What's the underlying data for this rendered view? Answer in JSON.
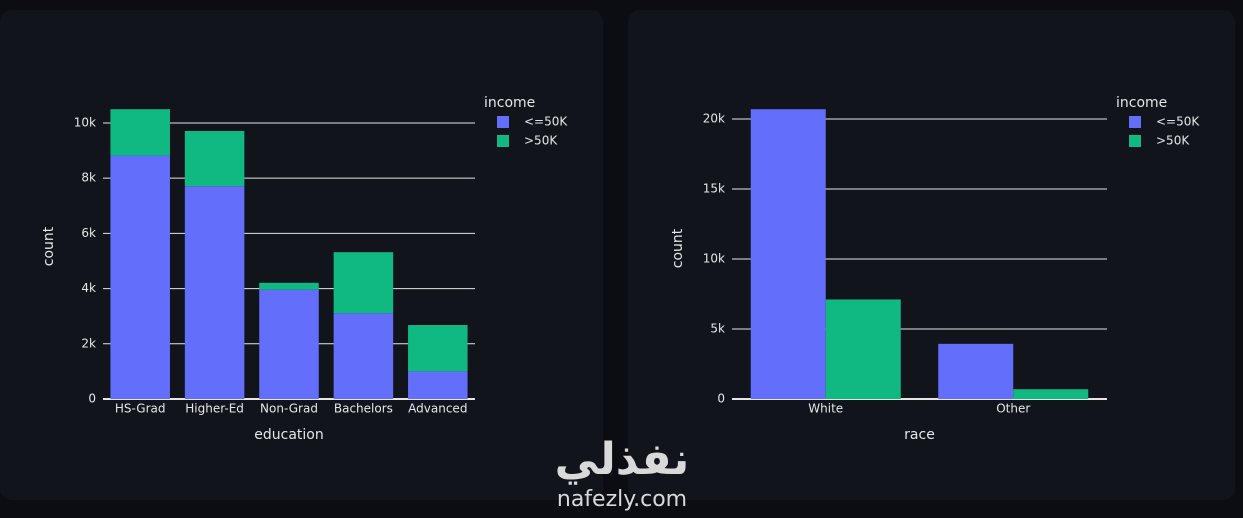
{
  "chart_data": [
    {
      "type": "bar",
      "barmode": "stack",
      "x_label": "education",
      "y_label": "count",
      "legend_title": "income",
      "categories": [
        "HS-Grad",
        "Higher-Ed",
        "Non-Grad",
        "Bachelors",
        "Advanced"
      ],
      "series": [
        {
          "name": "<=50K",
          "color": "#636efa",
          "values": [
            8820,
            7710,
            3960,
            3110,
            1000
          ]
        },
        {
          "name": ">50K",
          "color": "#10b981",
          "values": [
            1680,
            2000,
            250,
            2210,
            1680
          ]
        }
      ],
      "ylim": [
        0,
        11050
      ],
      "yticks": [
        0,
        {
          "value": 2000,
          "label": "2k"
        },
        {
          "value": 4000,
          "label": "4k"
        },
        {
          "value": 6000,
          "label": "6k"
        },
        {
          "value": 8000,
          "label": "8k"
        },
        {
          "value": 10000,
          "label": "10k"
        }
      ],
      "grid": true
    },
    {
      "type": "bar",
      "barmode": "group",
      "x_label": "race",
      "y_label": "count",
      "legend_title": "income",
      "categories": [
        "White",
        "Other"
      ],
      "series": [
        {
          "name": "<=50K",
          "color": "#636efa",
          "values": [
            20700,
            3940
          ]
        },
        {
          "name": ">50K",
          "color": "#10b981",
          "values": [
            7110,
            700
          ]
        }
      ],
      "ylim": [
        0,
        21500
      ],
      "yticks": [
        0,
        {
          "value": 5000,
          "label": "5k"
        },
        {
          "value": 10000,
          "label": "10k"
        },
        {
          "value": 15000,
          "label": "15k"
        },
        {
          "value": 20000,
          "label": "20k"
        }
      ],
      "grid": true
    }
  ],
  "watermark": {
    "arabic": "نفذلي",
    "url": "nafezly.com"
  }
}
